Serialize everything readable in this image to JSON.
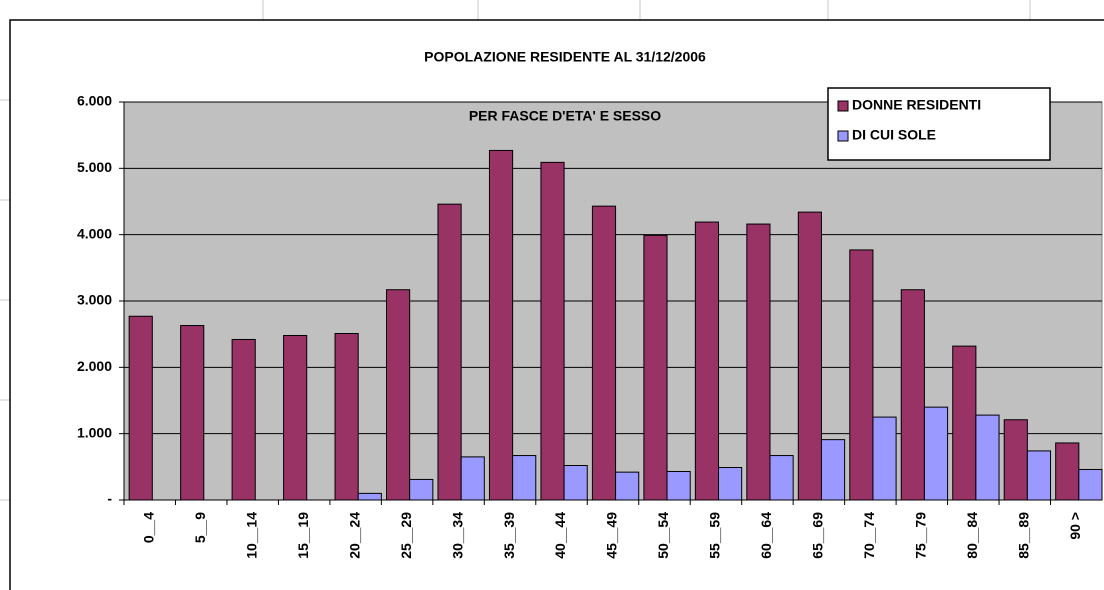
{
  "chart_data": {
    "type": "bar",
    "title": "POPOLAZIONE RESIDENTE AL 31/12/2006",
    "subtitle": "PER FASCE D'ETA' E SESSO",
    "categories": [
      "0__4",
      "5__9",
      "10__14",
      "15__19",
      "20__24",
      "25__29",
      "30__34",
      "35__39",
      "40__44",
      "45__49",
      "50__54",
      "55__59",
      "60__64",
      "65__69",
      "70__74",
      "75__79",
      "80__84",
      "85__89",
      "90 >"
    ],
    "series": [
      {
        "name": "DONNE RESIDENTI",
        "color": "#993366",
        "values": [
          2770,
          2630,
          2420,
          2480,
          2510,
          3170,
          4460,
          5270,
          5090,
          4430,
          3990,
          4190,
          4160,
          4340,
          3770,
          3170,
          2320,
          1210,
          860
        ]
      },
      {
        "name": "DI CUI SOLE",
        "color": "#9999ff",
        "values": [
          0,
          0,
          0,
          0,
          100,
          310,
          650,
          670,
          520,
          420,
          430,
          490,
          670,
          910,
          1250,
          1400,
          1280,
          740,
          460
        ]
      }
    ],
    "ylim": [
      0,
      6000
    ],
    "yticks": [
      {
        "value": 0,
        "label": "-"
      },
      {
        "value": 1000,
        "label": "1.000"
      },
      {
        "value": 2000,
        "label": "2.000"
      },
      {
        "value": 3000,
        "label": "3.000"
      },
      {
        "value": 4000,
        "label": "4.000"
      },
      {
        "value": 5000,
        "label": "5.000"
      },
      {
        "value": 6000,
        "label": "6.000"
      }
    ],
    "grid": true,
    "legend": "top-right",
    "plot_background": "#c0c0c0"
  }
}
